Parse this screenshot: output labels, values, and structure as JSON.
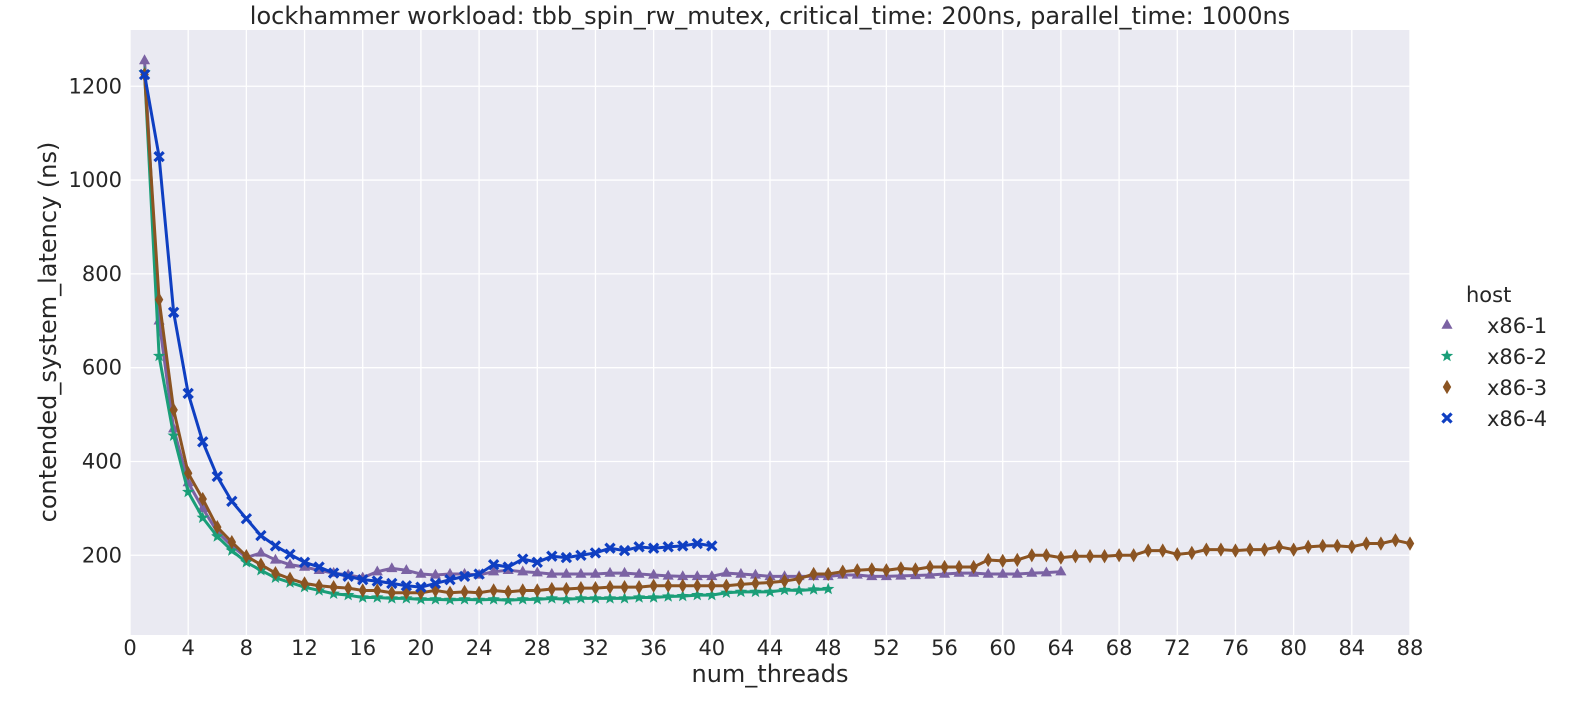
{
  "chart_data": {
    "type": "line",
    "title": "lockhammer workload: tbb_spin_rw_mutex, critical_time: 200ns, parallel_time: 1000ns",
    "xlabel": "num_threads",
    "ylabel": "contended_system_latency (ns)",
    "xlim": [
      0,
      88
    ],
    "ylim": [
      30,
      1320
    ],
    "xticks": [
      0,
      4,
      8,
      12,
      16,
      20,
      24,
      28,
      32,
      36,
      40,
      44,
      48,
      52,
      56,
      60,
      64,
      68,
      72,
      76,
      80,
      84,
      88
    ],
    "yticks": [
      200,
      400,
      600,
      800,
      1000,
      1200
    ],
    "grid": true,
    "legend_position": "right",
    "legend_title": "host",
    "series": [
      {
        "name": "x86-1",
        "color": "#7b62a3",
        "marker": "triangle",
        "x": [
          1,
          2,
          3,
          4,
          5,
          6,
          7,
          8,
          9,
          10,
          11,
          12,
          13,
          14,
          15,
          16,
          17,
          18,
          19,
          20,
          21,
          22,
          23,
          24,
          25,
          26,
          27,
          28,
          29,
          30,
          31,
          32,
          33,
          34,
          35,
          36,
          37,
          38,
          39,
          40,
          41,
          42,
          43,
          44,
          45,
          46,
          47,
          48,
          49,
          50,
          51,
          52,
          53,
          54,
          55,
          56,
          57,
          58,
          59,
          60,
          61,
          62,
          63,
          64
        ],
        "y": [
          1255,
          700,
          470,
          355,
          300,
          250,
          220,
          195,
          205,
          190,
          180,
          175,
          168,
          162,
          158,
          152,
          165,
          172,
          168,
          160,
          158,
          160,
          160,
          158,
          165,
          168,
          165,
          163,
          160,
          160,
          160,
          160,
          162,
          162,
          160,
          158,
          156,
          155,
          155,
          155,
          162,
          160,
          158,
          155,
          155,
          155,
          155,
          155,
          158,
          158,
          155,
          155,
          156,
          157,
          158,
          160,
          162,
          162,
          160,
          160,
          160,
          162,
          163,
          165
        ]
      },
      {
        "name": "x86-2",
        "color": "#1a9e78",
        "marker": "star",
        "x": [
          1,
          2,
          3,
          4,
          5,
          6,
          7,
          8,
          9,
          10,
          11,
          12,
          13,
          14,
          15,
          16,
          17,
          18,
          19,
          20,
          21,
          22,
          23,
          24,
          25,
          26,
          27,
          28,
          29,
          30,
          31,
          32,
          33,
          34,
          35,
          36,
          37,
          38,
          39,
          40,
          41,
          42,
          43,
          44,
          45,
          46,
          47,
          48
        ],
        "y": [
          1230,
          625,
          455,
          335,
          280,
          240,
          210,
          185,
          168,
          152,
          142,
          132,
          125,
          118,
          115,
          110,
          110,
          108,
          108,
          106,
          106,
          105,
          106,
          105,
          106,
          104,
          106,
          106,
          108,
          106,
          108,
          108,
          108,
          108,
          110,
          110,
          112,
          113,
          115,
          115,
          120,
          122,
          122,
          122,
          126,
          125,
          127,
          128
        ]
      },
      {
        "name": "x86-3",
        "color": "#8b5422",
        "marker": "diamond",
        "x": [
          1,
          2,
          3,
          4,
          5,
          6,
          7,
          8,
          9,
          10,
          11,
          12,
          13,
          14,
          15,
          16,
          17,
          18,
          19,
          20,
          21,
          22,
          23,
          24,
          25,
          26,
          27,
          28,
          29,
          30,
          31,
          32,
          33,
          34,
          35,
          36,
          37,
          38,
          39,
          40,
          41,
          42,
          43,
          44,
          45,
          46,
          47,
          48,
          49,
          50,
          51,
          52,
          53,
          54,
          55,
          56,
          57,
          58,
          59,
          60,
          61,
          62,
          63,
          64,
          65,
          66,
          67,
          68,
          69,
          70,
          71,
          72,
          73,
          74,
          75,
          76,
          77,
          78,
          79,
          80,
          81,
          82,
          83,
          84,
          85,
          86,
          87,
          88
        ],
        "y": [
          1225,
          745,
          510,
          375,
          320,
          260,
          228,
          198,
          180,
          162,
          150,
          140,
          135,
          132,
          130,
          125,
          125,
          120,
          120,
          120,
          125,
          120,
          122,
          120,
          125,
          122,
          125,
          125,
          128,
          128,
          130,
          130,
          132,
          132,
          132,
          135,
          135,
          135,
          135,
          135,
          135,
          138,
          140,
          142,
          145,
          150,
          160,
          160,
          165,
          168,
          170,
          168,
          172,
          170,
          175,
          175,
          175,
          175,
          190,
          188,
          190,
          200,
          200,
          195,
          198,
          198,
          198,
          200,
          200,
          210,
          210,
          202,
          205,
          212,
          212,
          210,
          212,
          212,
          218,
          212,
          218,
          220,
          220,
          218,
          225,
          225,
          232,
          225
        ]
      },
      {
        "name": "x86-4",
        "color": "#0f3fc2",
        "marker": "x",
        "x": [
          1,
          2,
          3,
          4,
          5,
          6,
          7,
          8,
          9,
          10,
          11,
          12,
          13,
          14,
          15,
          16,
          17,
          18,
          19,
          20,
          21,
          22,
          23,
          24,
          25,
          26,
          27,
          28,
          29,
          30,
          31,
          32,
          33,
          34,
          35,
          36,
          37,
          38,
          39,
          40
        ],
        "y": [
          1225,
          1050,
          718,
          545,
          442,
          368,
          315,
          278,
          242,
          220,
          202,
          185,
          175,
          162,
          155,
          148,
          145,
          140,
          135,
          132,
          140,
          148,
          155,
          160,
          180,
          175,
          192,
          185,
          198,
          195,
          200,
          205,
          215,
          210,
          218,
          215,
          218,
          220,
          225,
          220
        ]
      }
    ]
  }
}
